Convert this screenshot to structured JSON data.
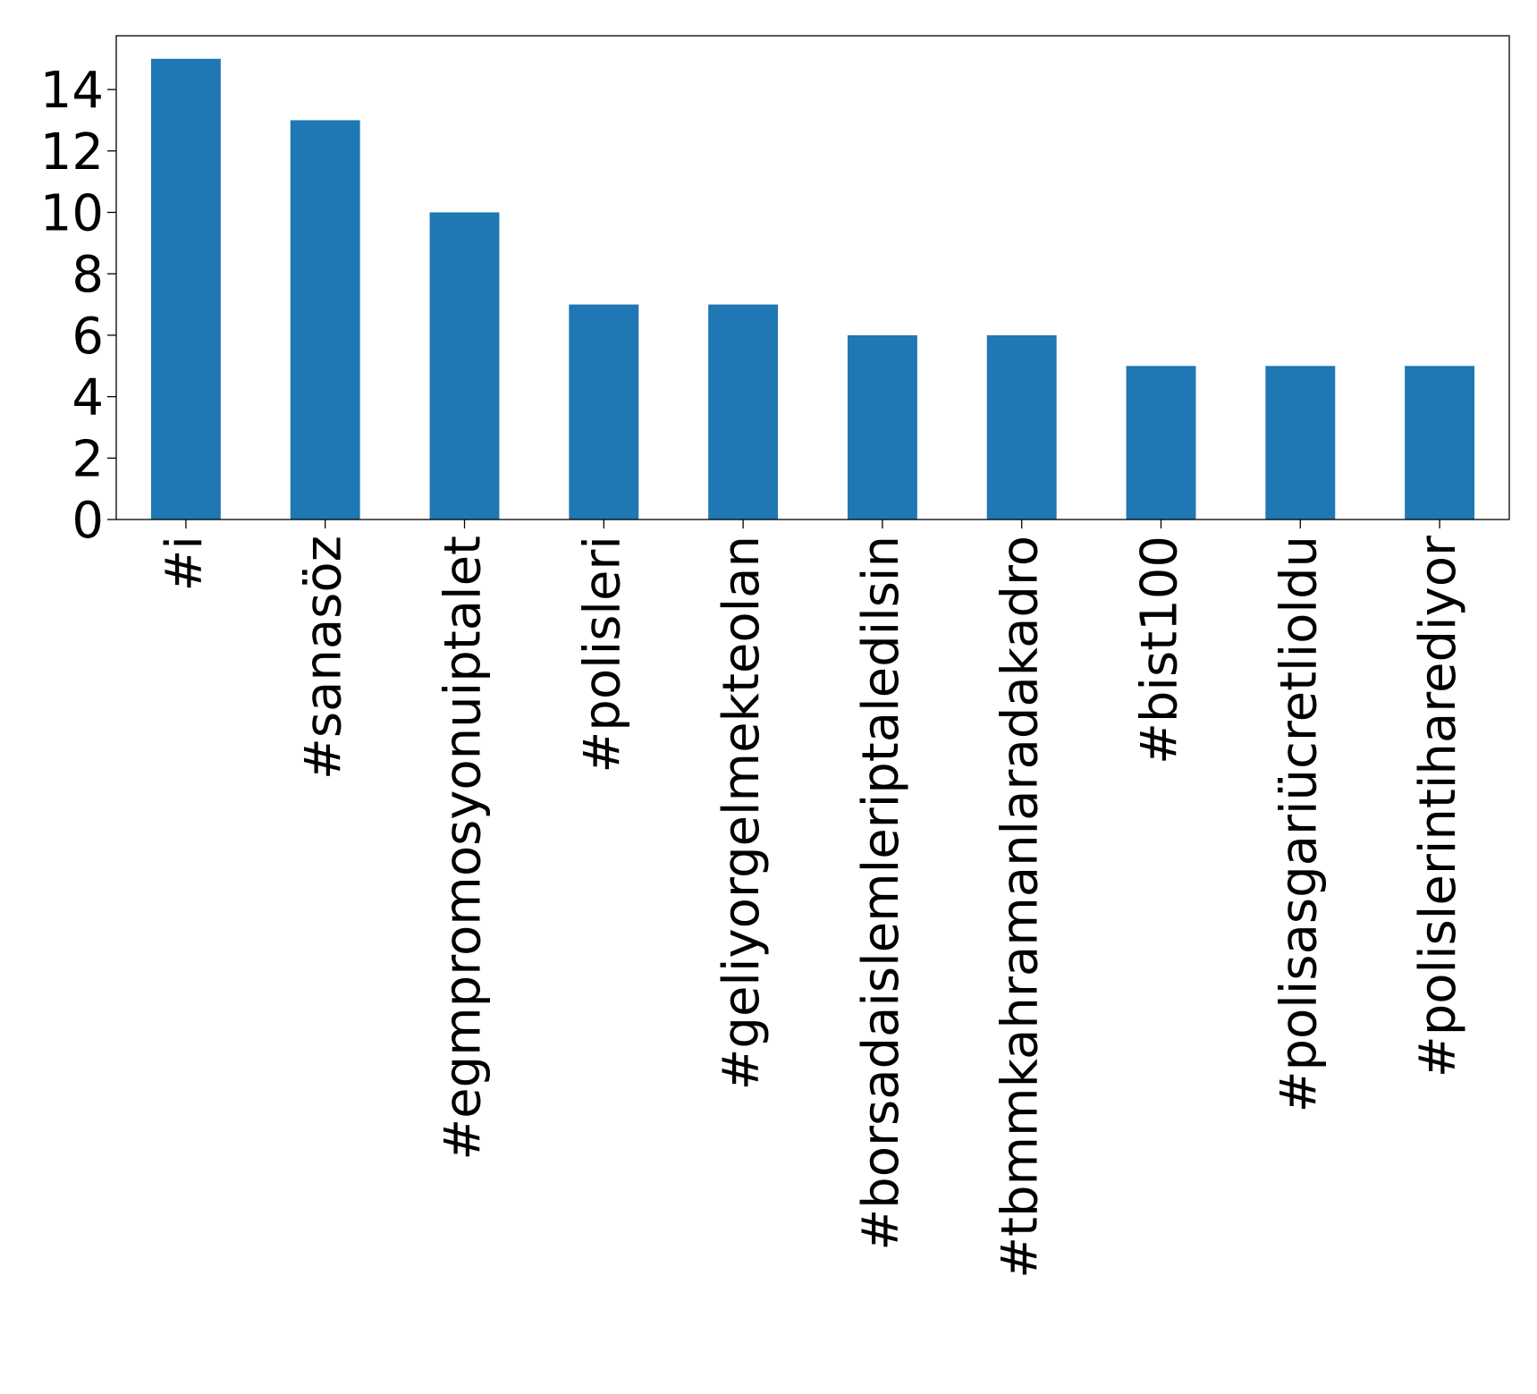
{
  "chart_data": {
    "type": "bar",
    "title": "",
    "xlabel": "",
    "ylabel": "",
    "categories": [
      "#i",
      "#sanasöz",
      "#egmpromosyonuiptalet",
      "#polisleri",
      "#geliyorgelmekteolan",
      "#borsadaislemleriptaledilsin",
      "#tbmmkahramanlaradakadro",
      "#bist100",
      "#polisasgariücretlioldu",
      "#polislerintiharediyor"
    ],
    "values": [
      15,
      13,
      10,
      7,
      7,
      6,
      6,
      5,
      5,
      5
    ],
    "ylim": [
      0,
      15.75
    ],
    "yticks": [
      0,
      2,
      4,
      6,
      8,
      10,
      12,
      14
    ],
    "grid": false,
    "legend": "none",
    "colors": {
      "bar": "#1f77b4",
      "axis": "#000000",
      "background": "#ffffff"
    }
  }
}
